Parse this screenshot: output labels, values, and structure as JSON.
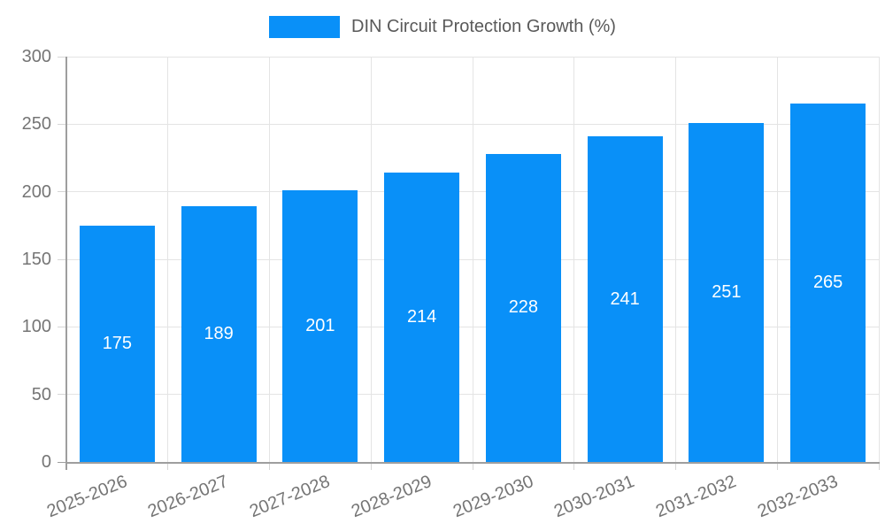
{
  "legend": {
    "label": "DIN Circuit Protection Growth (%)"
  },
  "chart_data": {
    "type": "bar",
    "title": "DIN Circuit Protection Growth (%)",
    "categories": [
      "2025-2026",
      "2026-2027",
      "2027-2028",
      "2028-2029",
      "2029-2030",
      "2030-2031",
      "2031-2032",
      "2032-2033"
    ],
    "values": [
      175,
      189,
      201,
      214,
      228,
      241,
      251,
      265
    ],
    "xlabel": "",
    "ylabel": "",
    "ylim": [
      0,
      300
    ],
    "yticks": [
      0,
      50,
      100,
      150,
      200,
      250,
      300
    ],
    "grid": true,
    "legend_position": "top-center",
    "bar_labels_inside": true,
    "colors": {
      "bar": "#0990f8",
      "bar_label_text": "#ffffff",
      "grid_line": "#e4e4e4",
      "tick_mark": "#d6d6d6",
      "axis_line": "#9e9e9e",
      "tick_text": "#757575",
      "legend_text": "#595959"
    }
  }
}
